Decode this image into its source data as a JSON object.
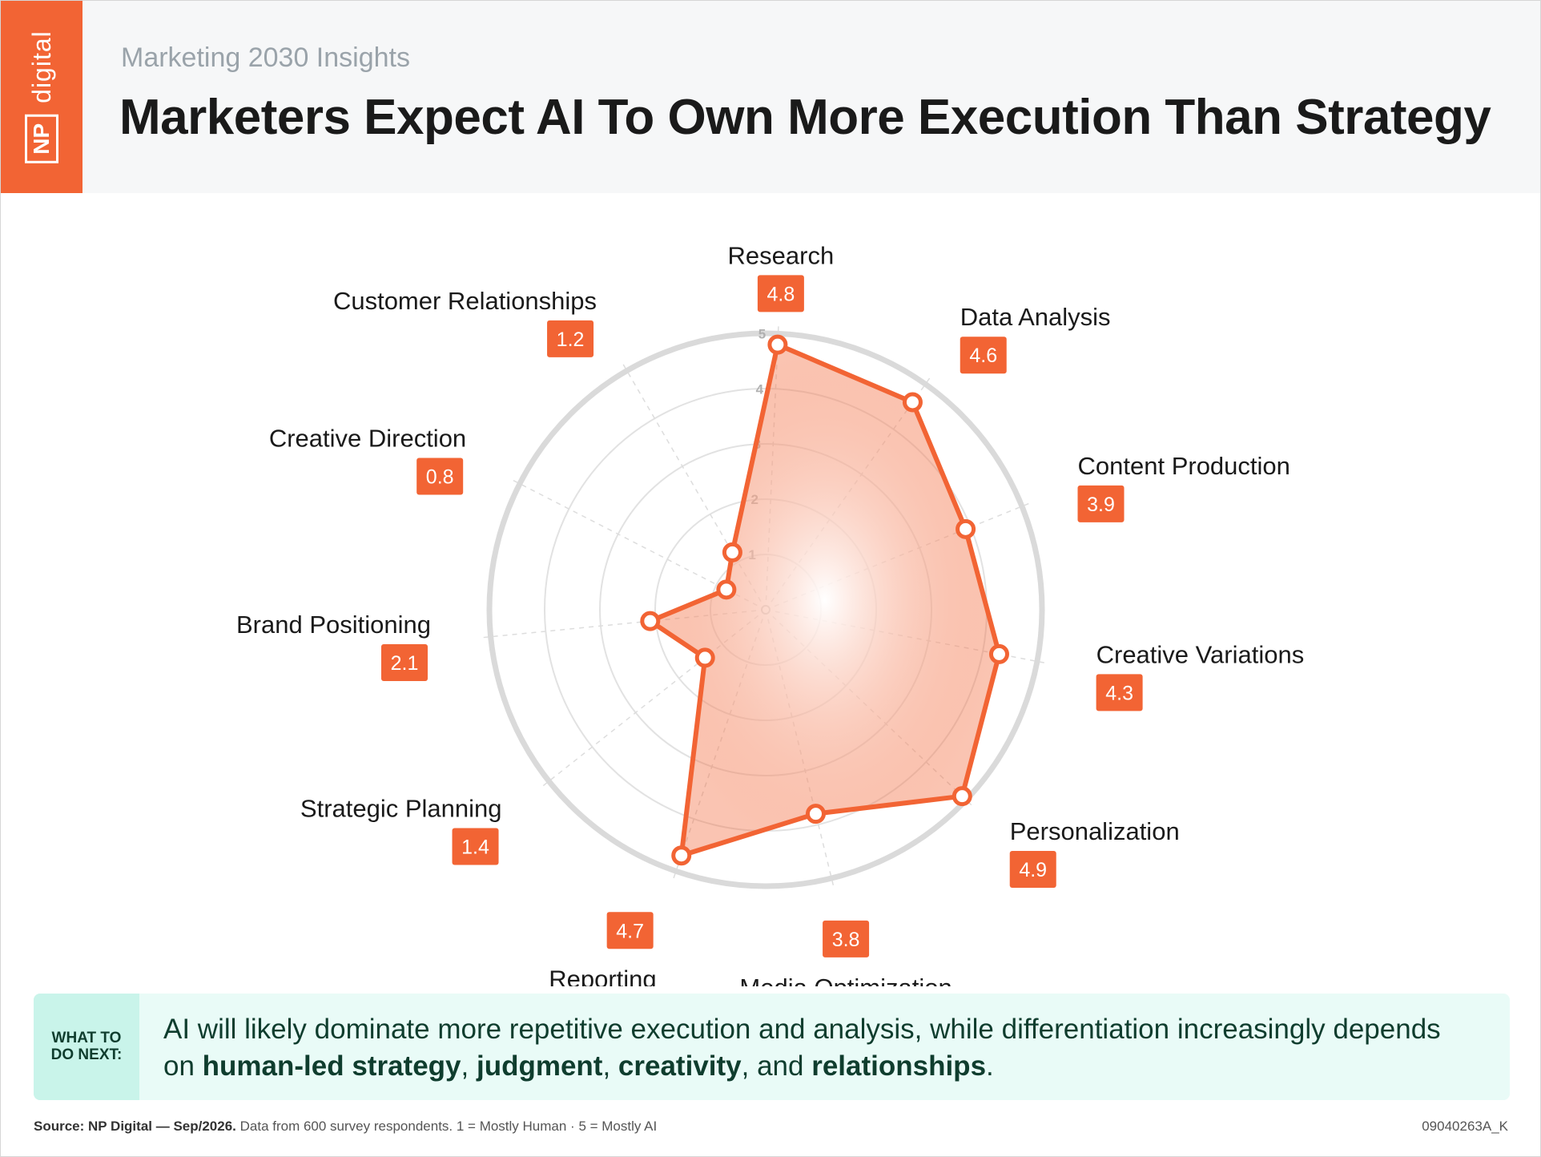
{
  "header": {
    "brand_np": "NP",
    "brand_word": "digital",
    "subtitle": "Marketing 2030 Insights",
    "title": "Marketers Expect AI To Own More Execution Than Strategy"
  },
  "colors": {
    "accent": "#f26434",
    "callout_bg": "#e9fbf7",
    "callout_tag_bg": "#c9f4ea",
    "callout_text": "#0f3d2e"
  },
  "chart_data": {
    "type": "radar",
    "title": "Marketers Expect AI To Own More Execution Than Strategy",
    "categories": [
      "Research",
      "Data Analysis",
      "Content Production",
      "Creative Variations",
      "Personalization",
      "Media Optimization",
      "Reporting",
      "Strategic Planning",
      "Brand Positioning",
      "Creative Direction",
      "Customer Relationships"
    ],
    "values": [
      4.8,
      4.6,
      3.9,
      4.3,
      4.9,
      3.8,
      4.7,
      1.4,
      2.1,
      0.8,
      1.2
    ],
    "value_labels": [
      "4.8",
      "4.6",
      "3.9",
      "4.3",
      "4.9",
      "3.8",
      "4.7",
      "1.4",
      "2.1",
      "0.8",
      "1.2"
    ],
    "rlim": [
      0,
      5
    ],
    "ring_ticks": [
      "1",
      "2",
      "3",
      "4",
      "5"
    ],
    "grid": true,
    "legend": "none"
  },
  "callout": {
    "tag": "WHAT TO DO NEXT:",
    "text_before": "AI will likely dominate more repetitive execution and analysis, while differentiation increasingly depends on ",
    "bold_1": "human-led strategy",
    "sep_1": ", ",
    "bold_2": "judgment",
    "sep_2": ", ",
    "bold_3": "creativity",
    "sep_3": ", and ",
    "bold_4": "relationships",
    "text_after": "."
  },
  "footer": {
    "source_bold": "Source: NP Digital — Sep/2026.",
    "source_rest": " Data from 600 survey respondents. 1 = Mostly Human · 5 = Mostly AI",
    "code": "09040263A_K"
  }
}
